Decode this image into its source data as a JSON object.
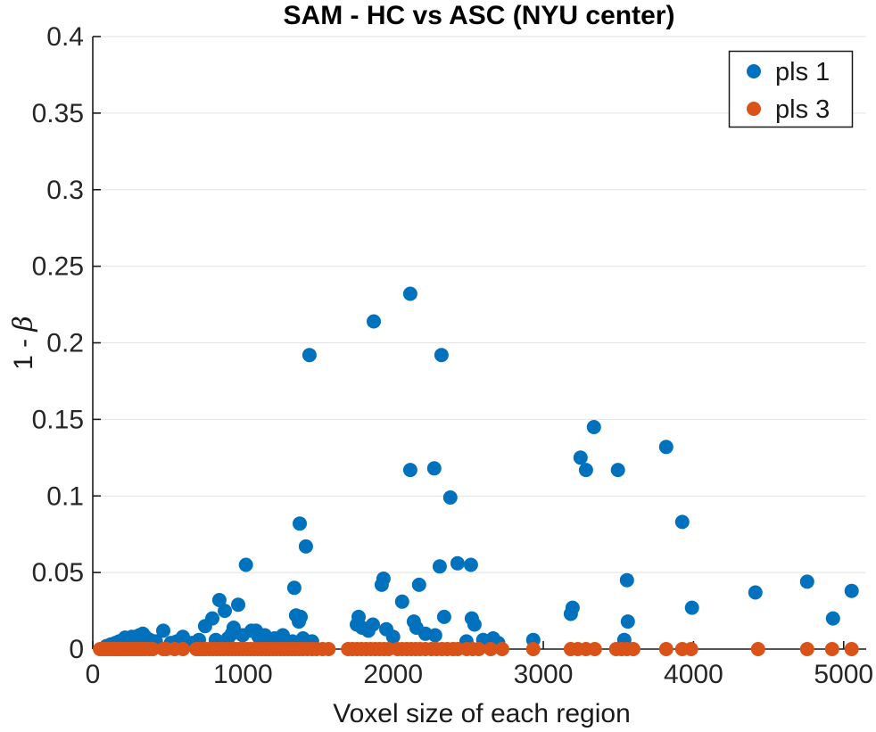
{
  "chart_data": {
    "type": "scatter",
    "title": "SAM - HC vs ASC (NYU center)",
    "xlabel": "Voxel size of each region",
    "ylabel": "1 - β",
    "xlim": [
      0,
      5150
    ],
    "ylim": [
      0,
      0.4
    ],
    "xticks": [
      0,
      1000,
      2000,
      3000,
      4000,
      5000
    ],
    "yticks": [
      0,
      0.05,
      0.1,
      0.15,
      0.2,
      0.25,
      0.3,
      0.35,
      0.4
    ],
    "grid": "horizontal-only",
    "grid_color": "#e2e2e2",
    "axis_color": "#1a1a1a",
    "legend_position": "top-right",
    "marker_radius": 8,
    "series": [
      {
        "name": "pls 1",
        "color": "#0072BD",
        "points": [
          [
            90,
            0.002
          ],
          [
            120,
            0.003
          ],
          [
            150,
            0.004
          ],
          [
            175,
            0.005
          ],
          [
            200,
            0.006
          ],
          [
            215,
            0.0075
          ],
          [
            232,
            0.007
          ],
          [
            250,
            0.005
          ],
          [
            260,
            0.008
          ],
          [
            285,
            0.008
          ],
          [
            310,
            0.009
          ],
          [
            333,
            0.01
          ],
          [
            350,
            0.008
          ],
          [
            380,
            0.006
          ],
          [
            420,
            0.005
          ],
          [
            469,
            0.012
          ],
          [
            520,
            0.004
          ],
          [
            560,
            0.005
          ],
          [
            600,
            0.008
          ],
          [
            660,
            0.004
          ],
          [
            707,
            0.006
          ],
          [
            748,
            0.015
          ],
          [
            796,
            0.02
          ],
          [
            819,
            0.006
          ],
          [
            843,
            0.032
          ],
          [
            879,
            0.025
          ],
          [
            900,
            0.007
          ],
          [
            926,
            0.01
          ],
          [
            938,
            0.014
          ],
          [
            968,
            0.029
          ],
          [
            998,
            0.009
          ],
          [
            1020,
            0.055
          ],
          [
            1057,
            0.012
          ],
          [
            1087,
            0.012
          ],
          [
            1105,
            0.008
          ],
          [
            1128,
            0.007
          ],
          [
            1146,
            0.009
          ],
          [
            1182,
            0.006
          ],
          [
            1210,
            0.007
          ],
          [
            1241,
            0.006
          ],
          [
            1265,
            0.009
          ],
          [
            1330,
            0.005
          ],
          [
            1342,
            0.04
          ],
          [
            1354,
            0.022
          ],
          [
            1372,
            0.018
          ],
          [
            1378,
            0.082
          ],
          [
            1384,
            0.021
          ],
          [
            1400,
            0.007
          ],
          [
            1419,
            0.067
          ],
          [
            1443,
            0.192
          ],
          [
            1460,
            0.005
          ],
          [
            1758,
            0.016
          ],
          [
            1770,
            0.021
          ],
          [
            1793,
            0.014
          ],
          [
            1835,
            0.012
          ],
          [
            1865,
            0.016
          ],
          [
            1871,
            0.214
          ],
          [
            1924,
            0.042
          ],
          [
            1936,
            0.046
          ],
          [
            1954,
            0.013
          ],
          [
            2000,
            0.008
          ],
          [
            2060,
            0.031
          ],
          [
            2114,
            0.232
          ],
          [
            2114,
            0.117
          ],
          [
            2138,
            0.018
          ],
          [
            2155,
            0.014
          ],
          [
            2173,
            0.042
          ],
          [
            2215,
            0.01
          ],
          [
            2274,
            0.118
          ],
          [
            2280,
            0.009
          ],
          [
            2310,
            0.054
          ],
          [
            2322,
            0.192
          ],
          [
            2340,
            0.021
          ],
          [
            2381,
            0.099
          ],
          [
            2429,
            0.056
          ],
          [
            2488,
            0.005
          ],
          [
            2518,
            0.055
          ],
          [
            2524,
            0.02
          ],
          [
            2542,
            0.016
          ],
          [
            2600,
            0.006
          ],
          [
            2666,
            0.007
          ],
          [
            2700,
            0.004
          ],
          [
            2933,
            0.006
          ],
          [
            3183,
            0.023
          ],
          [
            3195,
            0.027
          ],
          [
            3248,
            0.125
          ],
          [
            3284,
            0.117
          ],
          [
            3337,
            0.145
          ],
          [
            3497,
            0.117
          ],
          [
            3539,
            0.006
          ],
          [
            3557,
            0.045
          ],
          [
            3563,
            0.018
          ],
          [
            3818,
            0.132
          ],
          [
            3925,
            0.083
          ],
          [
            3990,
            0.027
          ],
          [
            4412,
            0.037
          ],
          [
            4757,
            0.044
          ],
          [
            4929,
            0.02
          ],
          [
            5053,
            0.038
          ]
        ]
      },
      {
        "name": "pls 3",
        "color": "#D95319",
        "points": [
          [
            48,
            0
          ],
          [
            65,
            0
          ],
          [
            85,
            0
          ],
          [
            105,
            0
          ],
          [
            125,
            0
          ],
          [
            145,
            0
          ],
          [
            160,
            0
          ],
          [
            175,
            0
          ],
          [
            190,
            0
          ],
          [
            210,
            0
          ],
          [
            230,
            0
          ],
          [
            250,
            0
          ],
          [
            270,
            0
          ],
          [
            290,
            0
          ],
          [
            310,
            0
          ],
          [
            330,
            0
          ],
          [
            350,
            0
          ],
          [
            375,
            0
          ],
          [
            400,
            0
          ],
          [
            469,
            0
          ],
          [
            490,
            0
          ],
          [
            545,
            0
          ],
          [
            600,
            0
          ],
          [
            689,
            0
          ],
          [
            710,
            0
          ],
          [
            730,
            0
          ],
          [
            750,
            0
          ],
          [
            775,
            0
          ],
          [
            800,
            0
          ],
          [
            825,
            0
          ],
          [
            850,
            0
          ],
          [
            875,
            0
          ],
          [
            900,
            0
          ],
          [
            925,
            0
          ],
          [
            950,
            0
          ],
          [
            975,
            0
          ],
          [
            1000,
            0
          ],
          [
            1025,
            0
          ],
          [
            1050,
            0
          ],
          [
            1075,
            0
          ],
          [
            1100,
            0
          ],
          [
            1125,
            0
          ],
          [
            1150,
            0
          ],
          [
            1175,
            0
          ],
          [
            1200,
            0
          ],
          [
            1225,
            0
          ],
          [
            1250,
            0
          ],
          [
            1275,
            0
          ],
          [
            1300,
            0
          ],
          [
            1325,
            0
          ],
          [
            1350,
            0
          ],
          [
            1375,
            0
          ],
          [
            1400,
            0
          ],
          [
            1430,
            0
          ],
          [
            1460,
            0
          ],
          [
            1490,
            0
          ],
          [
            1530,
            0
          ],
          [
            1570,
            0
          ],
          [
            1700,
            0
          ],
          [
            1730,
            0
          ],
          [
            1760,
            0
          ],
          [
            1790,
            0
          ],
          [
            1820,
            0
          ],
          [
            1850,
            0
          ],
          [
            1880,
            0
          ],
          [
            1910,
            0
          ],
          [
            1940,
            0
          ],
          [
            1970,
            0
          ],
          [
            2030,
            0
          ],
          [
            2060,
            0
          ],
          [
            2090,
            0
          ],
          [
            2120,
            0
          ],
          [
            2150,
            0
          ],
          [
            2180,
            0
          ],
          [
            2215,
            0
          ],
          [
            2255,
            0
          ],
          [
            2290,
            0
          ],
          [
            2325,
            0
          ],
          [
            2360,
            0
          ],
          [
            2400,
            0
          ],
          [
            2430,
            0
          ],
          [
            2490,
            0
          ],
          [
            2530,
            0
          ],
          [
            2570,
            0
          ],
          [
            2650,
            0
          ],
          [
            2726,
            0
          ],
          [
            2933,
            0
          ],
          [
            3183,
            0
          ],
          [
            3230,
            0
          ],
          [
            3284,
            0
          ],
          [
            3343,
            0
          ],
          [
            3485,
            0
          ],
          [
            3521,
            0
          ],
          [
            3557,
            0
          ],
          [
            3599,
            0
          ],
          [
            3818,
            0
          ],
          [
            3925,
            0
          ],
          [
            3984,
            0
          ],
          [
            4430,
            0
          ],
          [
            4757,
            0
          ],
          [
            4923,
            0
          ],
          [
            5053,
            0
          ]
        ]
      }
    ]
  }
}
